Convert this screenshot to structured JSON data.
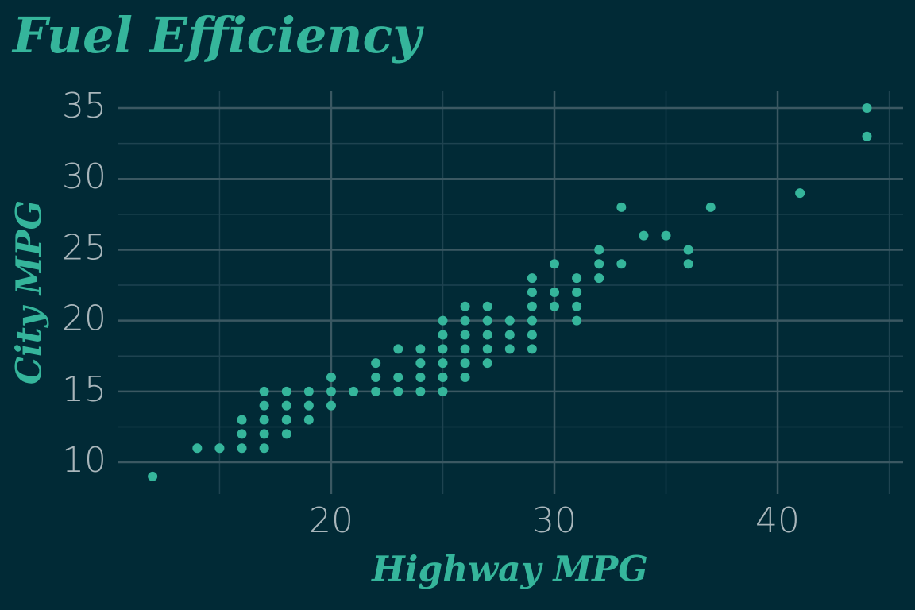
{
  "chart_data": {
    "type": "scatter",
    "title": "Fuel Efficiency",
    "x_label": "Highway MPG",
    "y_label": "City MPG",
    "color": "#35b59b",
    "x": [
      12,
      14,
      15,
      16,
      16,
      16,
      17,
      17,
      17,
      17,
      17,
      18,
      18,
      18,
      18,
      19,
      19,
      19,
      20,
      20,
      20,
      21,
      22,
      22,
      22,
      23,
      23,
      23,
      24,
      24,
      24,
      24,
      25,
      25,
      25,
      25,
      25,
      25,
      26,
      26,
      26,
      26,
      26,
      26,
      27,
      27,
      27,
      27,
      27,
      28,
      28,
      28,
      29,
      29,
      29,
      29,
      29,
      29,
      30,
      30,
      30,
      31,
      31,
      31,
      31,
      32,
      32,
      32,
      33,
      33,
      34,
      35,
      36,
      36,
      37,
      41,
      44,
      44
    ],
    "y": [
      9,
      11,
      11,
      11,
      12,
      13,
      11,
      12,
      13,
      14,
      15,
      12,
      13,
      14,
      15,
      13,
      14,
      15,
      14,
      15,
      16,
      15,
      15,
      16,
      17,
      15,
      16,
      18,
      15,
      16,
      17,
      18,
      15,
      16,
      17,
      18,
      19,
      20,
      16,
      17,
      18,
      19,
      20,
      21,
      17,
      18,
      19,
      20,
      21,
      18,
      19,
      20,
      18,
      19,
      20,
      21,
      22,
      23,
      21,
      22,
      24,
      20,
      21,
      22,
      23,
      23,
      24,
      25,
      24,
      28,
      26,
      26,
      24,
      25,
      28,
      29,
      33,
      35
    ],
    "xlim": [
      10.43,
      45.62
    ],
    "ylim": [
      7.76,
      36.18
    ],
    "xticks": [
      20,
      30,
      40
    ],
    "yticks": [
      10,
      15,
      20,
      25,
      30,
      35
    ],
    "xminor_ticks": [
      15,
      25,
      35,
      45
    ],
    "yminor_ticks": [
      12.5,
      17.5,
      22.5,
      27.5,
      32.5
    ],
    "grid": true
  }
}
